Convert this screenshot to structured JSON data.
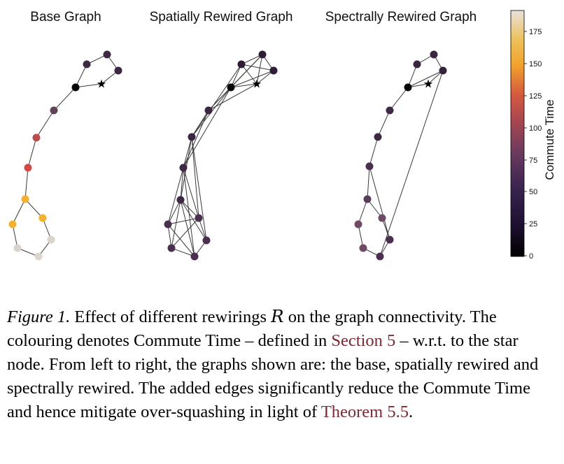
{
  "panels": [
    {
      "title": "Base Graph"
    },
    {
      "title": "Spatially Rewired Graph"
    },
    {
      "title": "Spectrally Rewired Graph"
    }
  ],
  "colorbar": {
    "label": "Commute Time",
    "ticks": [
      "0",
      "25",
      "50",
      "75",
      "100",
      "125",
      "150",
      "175"
    ],
    "colors": [
      "#000004",
      "#280b53",
      "#65156e",
      "#9f2a63",
      "#d44842",
      "#f57d15",
      "#fac228",
      "#fcffa4"
    ]
  },
  "caption": {
    "label": "Figure 1.",
    "line1_text": " Effect of different rewirings ",
    "symbol": "R",
    "line1_end": " on the graph connectivity.",
    "part2": "The colouring denotes Commute Time – defined in ",
    "ref1": "Section 5",
    "part3": " – w.r.t. to the star node. From left to right, the graphs shown are: the base, spatially rewired and spectrally rewired. The added edges significantly reduce the Commute Time and hence mitigate over-squashing in light of ",
    "ref2": "Theorem 5.5",
    "part4": "."
  }
}
